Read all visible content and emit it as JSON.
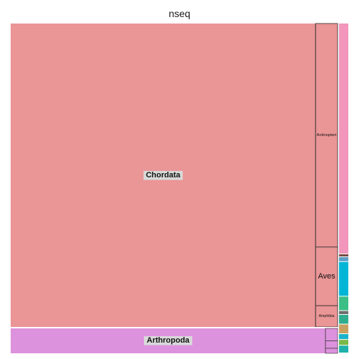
{
  "chart_data": {
    "type": "treemap",
    "title": "nseq",
    "groups": [
      {
        "name": "Chordata",
        "color": "#ea9596",
        "children": [
          {
            "name": "",
            "value": 7530
          },
          {
            "name": "Actinopteri",
            "value": 400
          },
          {
            "name": "Aves",
            "value": 105
          },
          {
            "name": "Amphibia",
            "value": 38
          }
        ]
      },
      {
        "name": "Arthropoda",
        "color": "#dd92dd",
        "children": [
          {
            "name": "",
            "value": 880
          },
          {
            "name": "",
            "value": 25
          },
          {
            "name": "",
            "value": 15
          },
          {
            "name": "",
            "value": 10
          }
        ]
      },
      {
        "name": "",
        "color": "#f296bb",
        "value": 240
      },
      {
        "name": "",
        "color": "#7a4a44",
        "value": 3
      },
      {
        "name": "",
        "color": "#5aa0c8",
        "value": 5
      },
      {
        "name": "",
        "color": "#00b5d6",
        "value": 36
      },
      {
        "name": "",
        "color": "#3bbf85",
        "value": 15
      },
      {
        "name": "",
        "color": "#6e6e6e",
        "value": 4
      },
      {
        "name": "",
        "color": "#2fae8f",
        "value": 10
      },
      {
        "name": "",
        "color": "#c9a060",
        "value": 10
      },
      {
        "name": "",
        "color": "#1ab3c9",
        "value": 6
      },
      {
        "name": "",
        "color": "#7ab848",
        "value": 6
      },
      {
        "name": "",
        "color": "#20b2aa",
        "value": 8
      }
    ]
  }
}
